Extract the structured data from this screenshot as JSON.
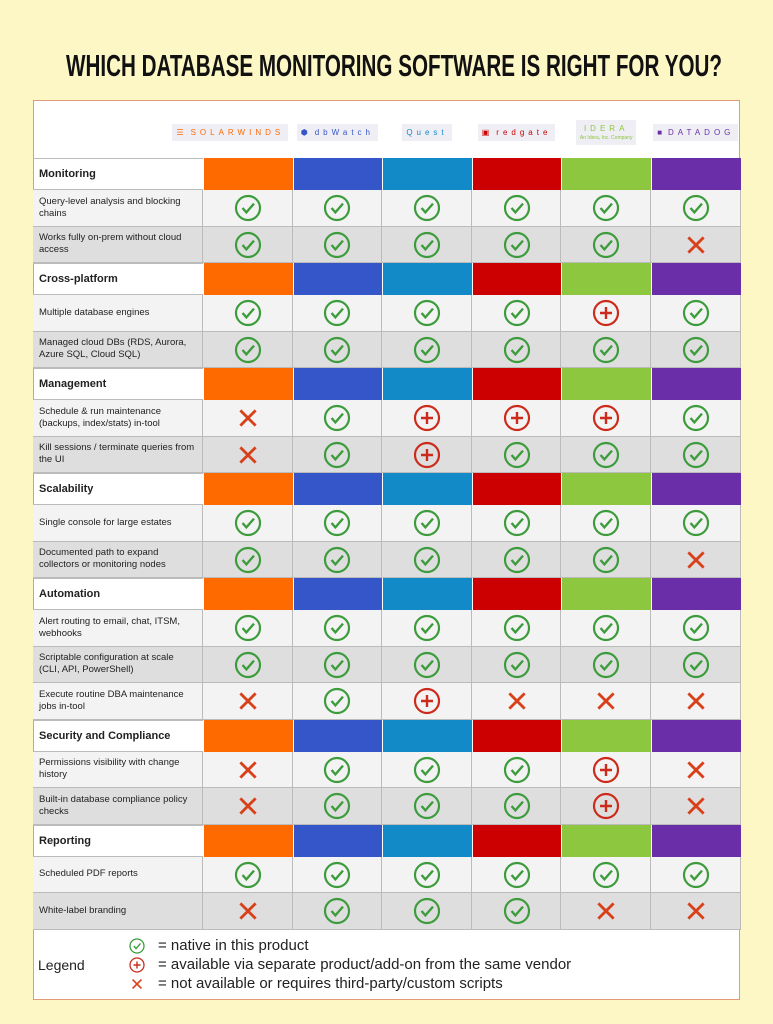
{
  "title": "WHICH DATABASE MONITORING  SOFTWARE IS RIGHT FOR YOU?",
  "vendors": [
    {
      "name": "SOLARWINDS",
      "color": "#ff6a00"
    },
    {
      "name": "dbWatch",
      "color": "#3456c8"
    },
    {
      "name": "Quest",
      "color": "#138ac8"
    },
    {
      "name": "redgate",
      "color": "#cc0000"
    },
    {
      "name": "IDERA",
      "tagline": "An Idera, Inc. Company",
      "color": "#8dc63f"
    },
    {
      "name": "DATADOG",
      "color": "#6a2fa8"
    }
  ],
  "sections": [
    {
      "name": "Monitoring",
      "rows": [
        {
          "label": "Query-level analysis and blocking chains",
          "cells": [
            0,
            0,
            0,
            0,
            0,
            0
          ]
        },
        {
          "label": "Works fully on-prem without cloud access",
          "cells": [
            0,
            0,
            0,
            0,
            0,
            2
          ]
        }
      ]
    },
    {
      "name": "Cross-platform",
      "rows": [
        {
          "label": "Multiple database engines",
          "cells": [
            0,
            0,
            0,
            0,
            1,
            0
          ]
        },
        {
          "label": "Managed cloud DBs (RDS, Aurora, Azure SQL, Cloud SQL)",
          "cells": [
            0,
            0,
            0,
            0,
            0,
            0
          ]
        }
      ]
    },
    {
      "name": "Management",
      "rows": [
        {
          "label": "Schedule & run maintenance (backups, index/stats) in-tool",
          "cells": [
            2,
            0,
            1,
            1,
            1,
            0
          ]
        },
        {
          "label": "Kill sessions / terminate queries from the UI",
          "cells": [
            2,
            0,
            1,
            0,
            0,
            0
          ]
        }
      ]
    },
    {
      "name": "Scalability",
      "rows": [
        {
          "label": "Single console for large estates",
          "cells": [
            0,
            0,
            0,
            0,
            0,
            0
          ]
        },
        {
          "label": "Documented path to expand collectors or monitoring nodes",
          "cells": [
            0,
            0,
            0,
            0,
            0,
            2
          ]
        }
      ]
    },
    {
      "name": "Automation",
      "rows": [
        {
          "label": "Alert routing to email, chat, ITSM, webhooks",
          "cells": [
            0,
            0,
            0,
            0,
            0,
            0
          ]
        },
        {
          "label": "Scriptable configuration at scale (CLI, API, PowerShell)",
          "cells": [
            0,
            0,
            0,
            0,
            0,
            0
          ]
        },
        {
          "label": "Execute routine DBA maintenance jobs in-tool",
          "cells": [
            2,
            0,
            1,
            2,
            2,
            2
          ]
        }
      ]
    },
    {
      "name": "Security and Compliance",
      "rows": [
        {
          "label": "Permissions visibility with change history",
          "cells": [
            2,
            0,
            0,
            0,
            1,
            2
          ]
        },
        {
          "label": "Built-in database compliance policy checks",
          "cells": [
            2,
            0,
            0,
            0,
            1,
            2
          ]
        }
      ]
    },
    {
      "name": "Reporting",
      "rows": [
        {
          "label": "Scheduled PDF reports",
          "cells": [
            0,
            0,
            0,
            0,
            0,
            0
          ]
        },
        {
          "label": "White-label branding",
          "cells": [
            2,
            0,
            0,
            0,
            2,
            2
          ]
        }
      ]
    }
  ],
  "legend": {
    "title": "Legend",
    "items": [
      "= native in this product",
      "= available via separate product/add-on from the same vendor",
      "= not available or requires third-party/custom scripts"
    ]
  }
}
